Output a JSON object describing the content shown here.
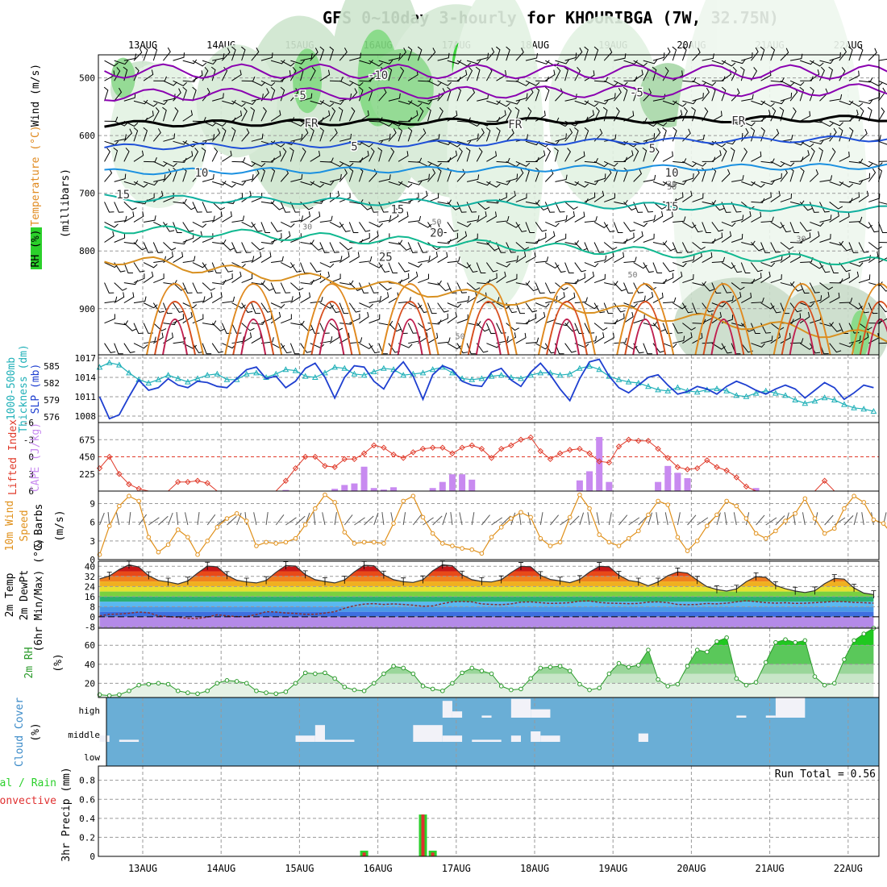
{
  "title": "GFS 0~10day 3-hourly for KHOURIBGA (7W, 32.75N)",
  "dates": [
    "13AUG",
    "14AUG",
    "15AUG",
    "16AUG",
    "17AUG",
    "18AUG",
    "19AUG",
    "20AUG",
    "21AUG",
    "22AUG"
  ],
  "colors": {
    "rh": "#2bd02b",
    "temp_warm": "#e08a20",
    "temp_cool": "#10b0a0",
    "slp": "#1e3fd0",
    "thickness": "#20b0b8",
    "lifted": "#e03a2a",
    "cape": "#c88af0",
    "wind10m": "#e0901a",
    "rh2m": "#2a9a2a",
    "cloud_bg": "#6aaed6",
    "cloud_fill": "#f2f2f8",
    "precip_total": "#2bd02b",
    "precip_conv": "#e03030"
  },
  "chart_data": [
    {
      "type": "heatmap",
      "panel": "upper-air",
      "ylabel_parts": [
        "RH (%)",
        "Temperature (°C)",
        "Wind (m/s)"
      ],
      "ylabel_units": "(millibars)",
      "y_ticks": [
        "500",
        "600",
        "700",
        "800",
        "900"
      ],
      "ylim": [
        460,
        980
      ],
      "isotherm_labels": [
        {
          "text": "-10",
          "level": 495,
          "x": 16.0
        },
        {
          "text": "-5",
          "level": 530,
          "x": 15.0
        },
        {
          "text": "-5",
          "level": 525,
          "x": 19.3
        },
        {
          "text": "FR",
          "level": 578,
          "x": 15.15
        },
        {
          "text": "FR",
          "level": 580,
          "x": 17.75
        },
        {
          "text": "FR",
          "level": 574,
          "x": 20.6
        },
        {
          "text": "5",
          "level": 619,
          "x": 15.7
        },
        {
          "text": "5",
          "level": 622,
          "x": 19.5
        },
        {
          "text": "10",
          "level": 664,
          "x": 13.75
        },
        {
          "text": "10",
          "level": 664,
          "x": 19.75
        },
        {
          "text": "15",
          "level": 702,
          "x": 12.75
        },
        {
          "text": "15",
          "level": 728,
          "x": 16.25
        },
        {
          "text": "15",
          "level": 723,
          "x": 19.75
        },
        {
          "text": "20",
          "level": 768,
          "x": 16.75
        },
        {
          "text": "25",
          "level": 810,
          "x": 16.1
        }
      ],
      "rh_labels": [
        {
          "text": "30",
          "level": 757,
          "x": 15.1
        },
        {
          "text": "50",
          "level": 749,
          "x": 16.75
        },
        {
          "text": "30",
          "level": 683,
          "x": 19.75
        },
        {
          "text": "50",
          "level": 688,
          "x": 19.75
        },
        {
          "text": "30",
          "level": 778,
          "x": 21.4
        },
        {
          "text": "50",
          "level": 840,
          "x": 19.25
        },
        {
          "text": "50",
          "level": 947,
          "x": 17.05
        }
      ],
      "isotherms": [
        {
          "label": "-10",
          "color": "#8a00b0",
          "base": 488,
          "amp": 12,
          "trend": 2
        },
        {
          "label": "-5",
          "color": "#8a00b0",
          "base": 530,
          "amp": 10,
          "trend": -10
        },
        {
          "label": "FR",
          "color": "#000000",
          "base": 580,
          "amp": 5,
          "trend": -10
        },
        {
          "label": "5",
          "color": "#1e4fd8",
          "base": 620,
          "amp": 5,
          "trend": -15
        },
        {
          "label": "10",
          "color": "#1a90e0",
          "base": 663,
          "amp": 5,
          "trend": -10
        },
        {
          "label": "15",
          "color": "#10b0a0",
          "base": 708,
          "amp": 6,
          "trend": 20
        },
        {
          "label": "20",
          "color": "#10b890",
          "base": 760,
          "amp": 8,
          "trend": 60
        },
        {
          "label": "25",
          "color": "#d89020",
          "base": 812,
          "amp": 10,
          "trend": 140
        }
      ]
    },
    {
      "type": "line",
      "panel": "slp-thickness",
      "ylabel_parts": [
        "1000-500mb",
        "Thickness (dm)",
        "SLP (mb)"
      ],
      "y_ticks_left": [
        "585",
        "582",
        "579",
        "576"
      ],
      "y_ticks_right": [
        "1017",
        "1014",
        "1011",
        "1008"
      ],
      "series": [
        {
          "axis": "SLP (mb)",
          "ylim": [
            1007,
            1017.5
          ],
          "values": [
            1011,
            1007.6,
            1008.2,
            1011,
            1013.6,
            1012,
            1012.4,
            1013.8,
            1012.8,
            1012.4,
            1013.4,
            1013.2,
            1012.6,
            1012.4,
            1013.8,
            1015.2,
            1015.6,
            1013.8,
            1014.2,
            1012.4,
            1013.4,
            1015.4,
            1016.2,
            1014,
            1010.8,
            1014,
            1015.8,
            1015.6,
            1013.4,
            1012.2,
            1014.8,
            1016.4,
            1014.2,
            1010.6,
            1014.4,
            1015.8,
            1015.2,
            1013.4,
            1012.8,
            1012.6,
            1014.8,
            1015.4,
            1013.6,
            1012.6,
            1014.8,
            1016.2,
            1014.4,
            1012.2,
            1010.4,
            1013.8,
            1016.4,
            1016.8,
            1014.2,
            1012.4,
            1011.6,
            1012.8,
            1014,
            1014.4,
            1012.8,
            1011.4,
            1011.8,
            1012.6,
            1012.2,
            1011.4,
            1012.6,
            1013.4,
            1012.8,
            1012,
            1011.4,
            1012.2,
            1012.8,
            1012.2,
            1010.8,
            1012,
            1013.2,
            1012.4,
            1010.6,
            1011.6,
            1012.8,
            1012.4
          ]
        },
        {
          "axis": "Thickness (dm)",
          "ylim": [
            575,
            587
          ],
          "values": [
            584.8,
            585.6,
            585.2,
            583.8,
            582.6,
            582,
            582.6,
            583.4,
            582.8,
            582.2,
            582.8,
            583.4,
            583.6,
            582.6,
            582.6,
            583.6,
            583.8,
            583,
            583.6,
            584.4,
            584.2,
            583.2,
            583,
            583.8,
            584.8,
            584.6,
            583.6,
            583.4,
            584,
            584.6,
            584.4,
            583.4,
            583.6,
            583.8,
            584.4,
            584.8,
            583.8,
            582.8,
            582.6,
            582.8,
            583.2,
            583.4,
            583,
            582.8,
            583.4,
            583.8,
            583.8,
            583.4,
            583.6,
            584.6,
            585,
            584.4,
            583.2,
            582.6,
            582.2,
            582,
            581.4,
            580.8,
            580.6,
            581.2,
            580.6,
            580.4,
            580.8,
            581,
            580.6,
            579.8,
            579.6,
            580.2,
            580.6,
            580.2,
            579.8,
            579,
            578.4,
            578.8,
            579.4,
            579,
            578.2,
            577.6,
            577.4,
            577
          ]
        }
      ]
    },
    {
      "type": "bar",
      "panel": "lifted-cape",
      "ylabel_parts": [
        "Lifted Index",
        "CAPE (J/kg)"
      ],
      "y_ticks_left": [
        "-6",
        "-3",
        "0",
        "3",
        "6"
      ],
      "y_ticks_right": [
        "675",
        "450",
        "225"
      ],
      "lifted_ylim": [
        6,
        -6
      ],
      "cape_ylim": [
        0,
        900
      ],
      "lifted_index": [
        2,
        0,
        3,
        4.8,
        5.6,
        6,
        6,
        6,
        4.4,
        4.4,
        4.2,
        4.6,
        6,
        6,
        6,
        6,
        6,
        6,
        6,
        4.2,
        2,
        0,
        0,
        1.6,
        1.8,
        0.4,
        0.4,
        -0.6,
        -2,
        -1.6,
        -0.4,
        0.2,
        -0.8,
        -1.4,
        -1.6,
        -1.6,
        -0.6,
        -1.6,
        -2,
        -1.4,
        0.2,
        -1.4,
        -2,
        -3,
        -3.4,
        -1,
        0.4,
        -0.6,
        -1.2,
        -1.4,
        -0.6,
        0.8,
        1,
        -1.8,
        -3,
        -2.8,
        -2.8,
        -1.4,
        0.2,
        1.8,
        2.2,
        2,
        0.6,
        1.8,
        2.4,
        3.6,
        5.2,
        6,
        6,
        6,
        6,
        6,
        6,
        6,
        4.2,
        6,
        6,
        6,
        6,
        6
      ],
      "cape": [
        0,
        0,
        0,
        0,
        0,
        0,
        0,
        0,
        0,
        0,
        0,
        0,
        0,
        0,
        0,
        0,
        0,
        0,
        0,
        15,
        0,
        0,
        0,
        0,
        30,
        80,
        100,
        320,
        40,
        20,
        50,
        0,
        0,
        0,
        40,
        120,
        220,
        220,
        150,
        0,
        0,
        0,
        0,
        0,
        0,
        0,
        0,
        0,
        0,
        140,
        260,
        710,
        120,
        0,
        0,
        0,
        0,
        120,
        330,
        240,
        170,
        0,
        0,
        0,
        0,
        0,
        0,
        40,
        0,
        0,
        0,
        0,
        0,
        0,
        0,
        0,
        0,
        0,
        0,
        0
      ]
    },
    {
      "type": "line",
      "panel": "wind-10m",
      "ylabel_parts": [
        "10m Wind",
        "Speed",
        "& Barbs",
        "(m/s)"
      ],
      "y_ticks": [
        "9",
        "6",
        "3",
        "0"
      ],
      "ylim": [
        0,
        11
      ],
      "values": [
        0.8,
        5.4,
        8.6,
        10.2,
        9.4,
        3.6,
        1.2,
        2.4,
        4.8,
        3.6,
        0.8,
        3,
        5.2,
        6.6,
        7.4,
        6.2,
        2.2,
        2.8,
        2.6,
        2.8,
        3.4,
        5.6,
        8.2,
        10.4,
        9.2,
        4.4,
        2.6,
        2.8,
        2.8,
        2.6,
        5.8,
        9.4,
        10.2,
        6.8,
        4.2,
        2.6,
        2.2,
        1.8,
        1.6,
        1,
        3.6,
        5.2,
        6.6,
        7.6,
        6.8,
        3.4,
        2.2,
        2.8,
        6.8,
        10.4,
        8.2,
        4,
        2.8,
        2.2,
        3.4,
        4.6,
        7.2,
        9.4,
        8.8,
        3.6,
        1.4,
        3,
        5.4,
        7.2,
        9.4,
        8.6,
        6.6,
        4.2,
        3.4,
        4.6,
        6.2,
        7.4,
        9.8,
        6.6,
        4.2,
        5,
        8.2,
        10.2,
        9.2,
        6.4,
        5.8,
        3.8
      ]
    },
    {
      "type": "area",
      "panel": "temp-2m",
      "ylabel_parts": [
        "2m Temp",
        "2m DewPt",
        "(6hr Min/Max) (°C)"
      ],
      "y_ticks": [
        "40",
        "32",
        "24",
        "16",
        "8",
        "0",
        "-8"
      ],
      "ylim": [
        -9,
        44
      ],
      "temperature": [
        30,
        32.4,
        37.4,
        41.2,
        39.4,
        32.6,
        28.8,
        27.6,
        26,
        28.4,
        34.6,
        40.2,
        39.6,
        32.8,
        29,
        27.6,
        26.8,
        28.8,
        35.2,
        40.6,
        40.2,
        33.4,
        29.4,
        28,
        26.8,
        29.2,
        35.6,
        40.8,
        40.4,
        33.2,
        29.4,
        27.8,
        27.2,
        29.4,
        36.4,
        41.2,
        40.4,
        33.2,
        29.4,
        28,
        27.6,
        29.4,
        35,
        40,
        39.6,
        32.8,
        29.6,
        28.4,
        27,
        29.6,
        35.4,
        40,
        39.6,
        33,
        28.8,
        27.6,
        24.6,
        27.6,
        32.6,
        35.6,
        34.6,
        29,
        23.8,
        21.6,
        20.4,
        22,
        27.8,
        31.8,
        31.2,
        24.8,
        22.2,
        20.4,
        19.2,
        20.6,
        26.2,
        30.4,
        29.8,
        22.8,
        18.8,
        17.6
      ],
      "dewpoint": [
        0.8,
        2,
        2.2,
        2.8,
        3.8,
        3.2,
        0.8,
        0.2,
        -0.4,
        -1.2,
        -1.4,
        -0.2,
        1.6,
        0.8,
        0.2,
        0.2,
        1.8,
        4,
        3.8,
        3,
        2.6,
        2,
        2,
        3,
        4,
        6.8,
        8.8,
        10,
        10.4,
        9.8,
        10.2,
        9.8,
        9.2,
        8.4,
        8.6,
        10.4,
        11.8,
        12.2,
        11.8,
        10.2,
        9.8,
        9.6,
        10.2,
        11.6,
        11.8,
        11.2,
        10.6,
        10.8,
        11.2,
        12.4,
        12.6,
        11.4,
        10.8,
        10.6,
        10.4,
        10.6,
        11.6,
        11.8,
        11.2,
        9.8,
        9.6,
        9.8,
        10.6,
        10.2,
        10.8,
        11.8,
        12.8,
        12,
        11.2,
        10.8,
        11.2,
        10.6,
        10.8,
        11.2,
        11.6,
        12.2,
        12,
        11.4,
        11.2,
        10.8
      ]
    },
    {
      "type": "area",
      "panel": "rh-2m",
      "ylabel_parts": [
        "2m RH",
        "(%)"
      ],
      "y_ticks": [
        "60",
        "40",
        "20"
      ],
      "ylim": [
        5,
        78
      ],
      "values": [
        8,
        7,
        8,
        12,
        18,
        19,
        20,
        19,
        12,
        10,
        9,
        12,
        20,
        23,
        22,
        20,
        12,
        10,
        9,
        11,
        20,
        31,
        30,
        31,
        25,
        16,
        13,
        12,
        20,
        30,
        38,
        36,
        30,
        17,
        14,
        12,
        20,
        31,
        36,
        33,
        30,
        17,
        13,
        14,
        25,
        36,
        37,
        38,
        33,
        19,
        13,
        15,
        30,
        41,
        37,
        39,
        55,
        24,
        17,
        19,
        38,
        55,
        53,
        64,
        68,
        25,
        18,
        21,
        42,
        63,
        66,
        63,
        65,
        27,
        18,
        20,
        45,
        65,
        72,
        78
      ]
    },
    {
      "type": "heatmap",
      "panel": "cloud-cover",
      "ylabel_parts": [
        "Cloud Cover",
        "(%)"
      ],
      "y_ticks": [
        "high",
        "middle",
        "low"
      ],
      "cells": [
        {
          "layer": "middle",
          "t": [
            0,
            1
          ],
          "v": 30
        },
        {
          "layer": "middle",
          "t": [
            2,
            4
          ],
          "v": 10
        },
        {
          "layer": "middle",
          "t": [
            20,
            22
          ],
          "v": 30
        },
        {
          "layer": "middle",
          "t": [
            22,
            23
          ],
          "v": 80
        },
        {
          "layer": "middle",
          "t": [
            23,
            26
          ],
          "v": 10
        },
        {
          "layer": "middle",
          "t": [
            32,
            35
          ],
          "v": 80
        },
        {
          "layer": "middle",
          "t": [
            35,
            37
          ],
          "v": 30
        },
        {
          "layer": "middle",
          "t": [
            38,
            41
          ],
          "v": 10
        },
        {
          "layer": "middle",
          "t": [
            42,
            43
          ],
          "v": 30
        },
        {
          "layer": "middle",
          "t": [
            44,
            45
          ],
          "v": 50
        },
        {
          "layer": "middle",
          "t": [
            45,
            47
          ],
          "v": 30
        },
        {
          "layer": "middle",
          "t": [
            55,
            56
          ],
          "v": 40
        },
        {
          "layer": "high",
          "t": [
            35,
            36
          ],
          "v": 80
        },
        {
          "layer": "high",
          "t": [
            36,
            37
          ],
          "v": 30
        },
        {
          "layer": "high",
          "t": [
            39,
            40
          ],
          "v": 10
        },
        {
          "layer": "high",
          "t": [
            42,
            44
          ],
          "v": 90
        },
        {
          "layer": "high",
          "t": [
            44,
            46
          ],
          "v": 40
        },
        {
          "layer": "high",
          "t": [
            65,
            66
          ],
          "v": 10
        },
        {
          "layer": "high",
          "t": [
            68,
            69
          ],
          "v": 10
        },
        {
          "layer": "high",
          "t": [
            69,
            72
          ],
          "v": 100
        }
      ]
    },
    {
      "type": "bar",
      "panel": "precip-3hr",
      "ylabel_parts": [
        "Total / Rain",
        "Convective",
        "3hr Precip (mm)"
      ],
      "run_total_label": "Run Total = 0.56",
      "y_ticks": [
        "0.8",
        "0.6",
        "0.4",
        "0.2",
        "0"
      ],
      "ylim": [
        0,
        0.95
      ],
      "bars": [
        {
          "t": 27,
          "total": 0.06,
          "conv": 0.04
        },
        {
          "t": 33,
          "total": 0.44,
          "conv": 0.44
        },
        {
          "t": 34,
          "total": 0.06,
          "conv": 0.04
        }
      ]
    }
  ]
}
